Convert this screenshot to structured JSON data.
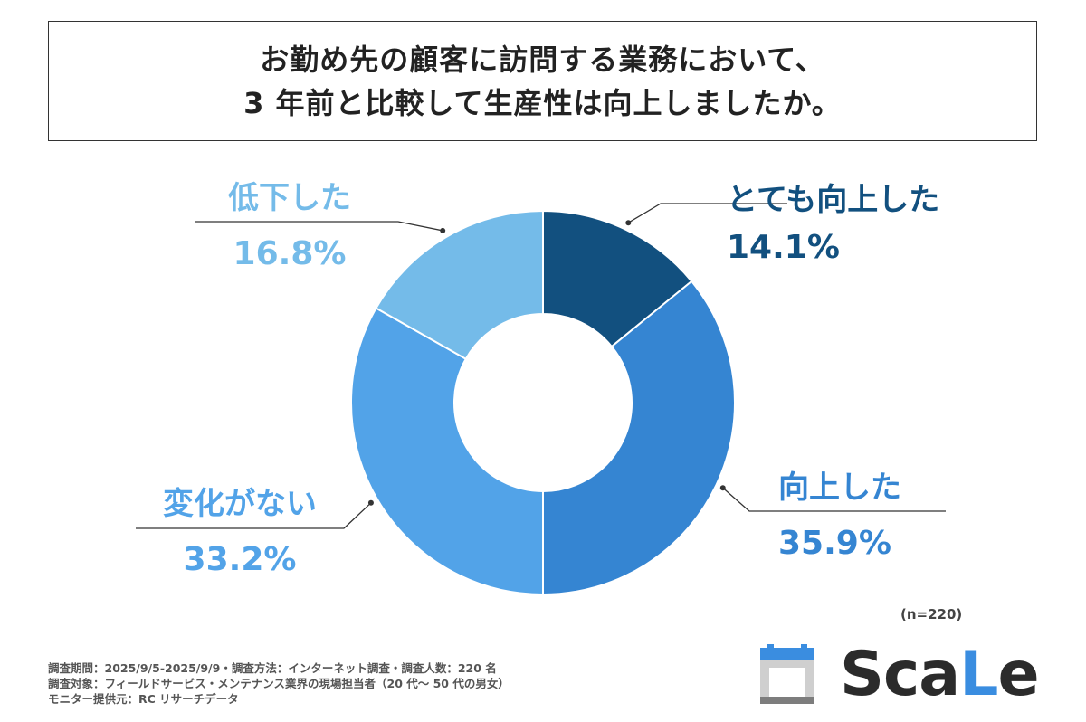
{
  "title": {
    "line1": "お勤め先の顧客に訪問する業務において、",
    "line2": "3 年前と比較して生産性は向上しましたか。"
  },
  "chart_data": {
    "type": "pie",
    "donut": true,
    "categories": [
      "とても向上した",
      "向上した",
      "変化がない",
      "低下した"
    ],
    "values": [
      14.1,
      35.9,
      33.2,
      16.8
    ],
    "value_labels": [
      "14.1%",
      "35.9%",
      "33.2%",
      "16.8%"
    ],
    "colors": [
      "#12507f",
      "#3585d2",
      "#52a3e8",
      "#74bbe9"
    ],
    "label_colors": [
      "#12507f",
      "#3585d2",
      "#52a3e8",
      "#74bbe9"
    ],
    "start_angle": "top, clockwise"
  },
  "sample_note": "(n=220)",
  "footer": {
    "line1": "調査期間：2025/9/5-2025/9/9・調査方法：インターネット調査・調査人数：220 名",
    "line2": "調査対象：フィールドサービス・メンテナンス業界の現場担当者（20 代〜 50 代の男女）",
    "line3": "モニター提供元：RC リサーチデータ"
  },
  "logo": {
    "text_a": "Sca",
    "text_b": "L",
    "text_c": "e"
  }
}
